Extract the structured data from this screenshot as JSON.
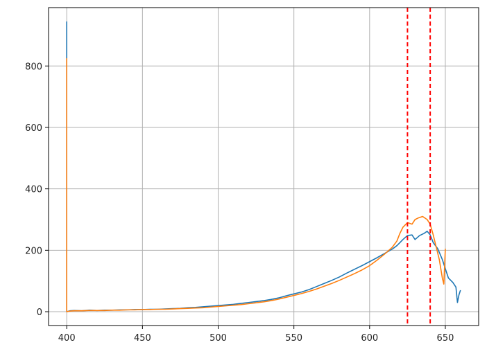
{
  "chart_data": {
    "type": "line",
    "title": "",
    "xlabel": "",
    "ylabel": "",
    "xlim": [
      388,
      672
    ],
    "ylim": [
      -45,
      990
    ],
    "xticks": [
      400,
      450,
      500,
      550,
      600,
      650
    ],
    "yticks": [
      0,
      200,
      400,
      600,
      800
    ],
    "grid": true,
    "vertical_lines": [
      {
        "x": 625,
        "color": "#ff0000",
        "style": "dashed"
      },
      {
        "x": 640,
        "color": "#ff0000",
        "style": "dashed"
      }
    ],
    "series": [
      {
        "color": "#1f77b4",
        "points": [
          [
            400,
            945
          ],
          [
            400,
            830
          ],
          [
            400,
            0
          ],
          [
            402,
            3
          ],
          [
            405,
            4
          ],
          [
            410,
            3
          ],
          [
            415,
            5
          ],
          [
            420,
            4
          ],
          [
            425,
            5
          ],
          [
            430,
            5
          ],
          [
            435,
            6
          ],
          [
            440,
            6
          ],
          [
            445,
            7
          ],
          [
            450,
            7
          ],
          [
            455,
            8
          ],
          [
            460,
            8
          ],
          [
            465,
            9
          ],
          [
            470,
            10
          ],
          [
            475,
            11
          ],
          [
            480,
            13
          ],
          [
            485,
            14
          ],
          [
            490,
            16
          ],
          [
            495,
            18
          ],
          [
            500,
            20
          ],
          [
            505,
            22
          ],
          [
            510,
            24
          ],
          [
            515,
            27
          ],
          [
            520,
            30
          ],
          [
            525,
            33
          ],
          [
            530,
            36
          ],
          [
            535,
            40
          ],
          [
            540,
            45
          ],
          [
            545,
            52
          ],
          [
            550,
            58
          ],
          [
            555,
            64
          ],
          [
            560,
            72
          ],
          [
            565,
            82
          ],
          [
            570,
            92
          ],
          [
            575,
            102
          ],
          [
            580,
            113
          ],
          [
            585,
            126
          ],
          [
            590,
            138
          ],
          [
            595,
            150
          ],
          [
            600,
            163
          ],
          [
            605,
            176
          ],
          [
            610,
            190
          ],
          [
            615,
            204
          ],
          [
            618,
            215
          ],
          [
            620,
            225
          ],
          [
            622,
            235
          ],
          [
            625,
            248
          ],
          [
            628,
            250
          ],
          [
            630,
            235
          ],
          [
            633,
            248
          ],
          [
            636,
            255
          ],
          [
            638,
            262
          ],
          [
            640,
            250
          ],
          [
            642,
            225
          ],
          [
            645,
            205
          ],
          [
            648,
            170
          ],
          [
            650,
            140
          ],
          [
            652,
            110
          ],
          [
            655,
            95
          ],
          [
            657,
            80
          ],
          [
            658,
            30
          ],
          [
            659,
            55
          ],
          [
            660,
            70
          ]
        ]
      },
      {
        "color": "#ff7f0e",
        "points": [
          [
            400,
            825
          ],
          [
            400,
            0
          ],
          [
            402,
            2
          ],
          [
            405,
            3
          ],
          [
            410,
            3
          ],
          [
            415,
            4
          ],
          [
            420,
            4
          ],
          [
            425,
            4
          ],
          [
            430,
            5
          ],
          [
            435,
            5
          ],
          [
            440,
            6
          ],
          [
            445,
            6
          ],
          [
            450,
            7
          ],
          [
            455,
            7
          ],
          [
            460,
            8
          ],
          [
            465,
            8
          ],
          [
            470,
            9
          ],
          [
            475,
            10
          ],
          [
            480,
            11
          ],
          [
            485,
            12
          ],
          [
            490,
            13
          ],
          [
            495,
            15
          ],
          [
            500,
            17
          ],
          [
            505,
            19
          ],
          [
            510,
            21
          ],
          [
            515,
            23
          ],
          [
            520,
            26
          ],
          [
            525,
            29
          ],
          [
            530,
            32
          ],
          [
            535,
            36
          ],
          [
            540,
            41
          ],
          [
            545,
            47
          ],
          [
            550,
            53
          ],
          [
            555,
            59
          ],
          [
            560,
            66
          ],
          [
            565,
            74
          ],
          [
            570,
            83
          ],
          [
            575,
            92
          ],
          [
            580,
            102
          ],
          [
            585,
            113
          ],
          [
            590,
            124
          ],
          [
            595,
            136
          ],
          [
            600,
            150
          ],
          [
            605,
            168
          ],
          [
            610,
            188
          ],
          [
            615,
            210
          ],
          [
            618,
            230
          ],
          [
            620,
            255
          ],
          [
            622,
            275
          ],
          [
            625,
            290
          ],
          [
            628,
            285
          ],
          [
            630,
            300
          ],
          [
            632,
            305
          ],
          [
            635,
            310
          ],
          [
            638,
            300
          ],
          [
            640,
            285
          ],
          [
            642,
            250
          ],
          [
            644,
            210
          ],
          [
            646,
            170
          ],
          [
            648,
            110
          ],
          [
            649,
            90
          ],
          [
            650,
            205
          ]
        ]
      }
    ]
  }
}
